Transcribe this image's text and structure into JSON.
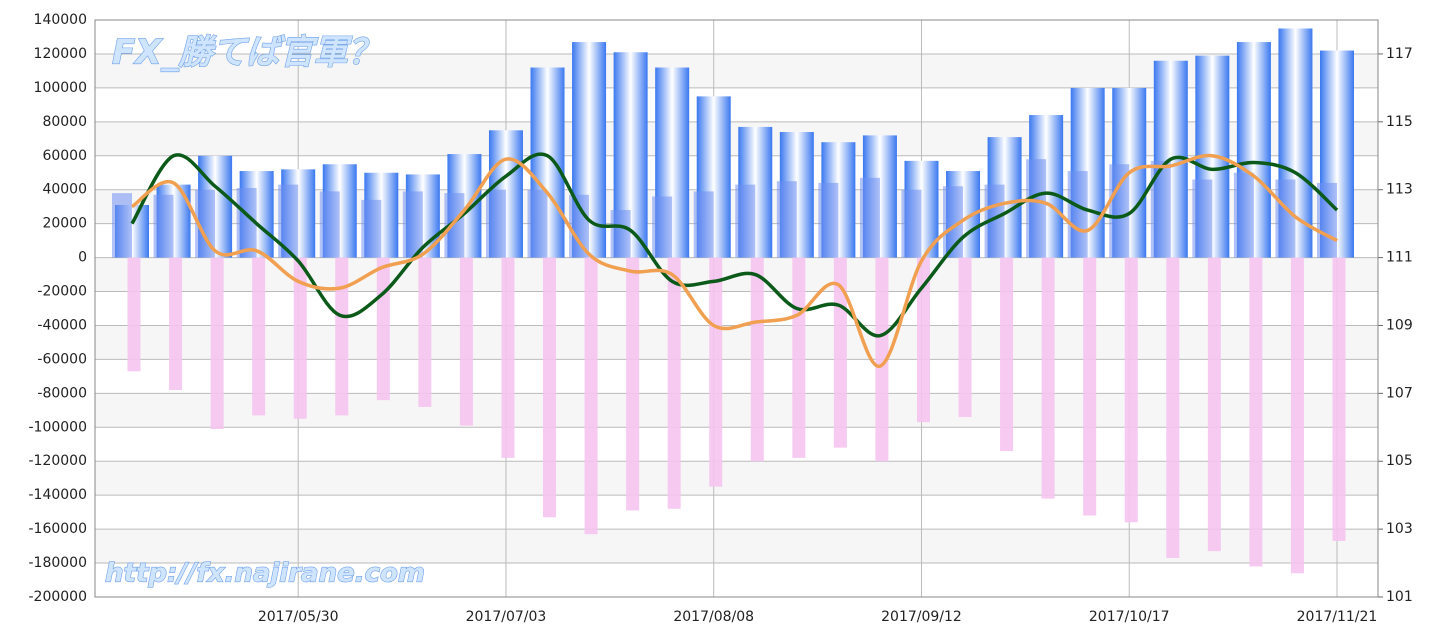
{
  "chart_data": {
    "type": "bar_line",
    "title": "FX_勝てば官軍？",
    "annotation": "http://fx.najirane.com",
    "categories": [
      null,
      null,
      null,
      null,
      "2017/05/30",
      null,
      null,
      null,
      null,
      "2017/07/03",
      null,
      null,
      null,
      null,
      "2017/08/08",
      null,
      null,
      null,
      null,
      "2017/09/12",
      null,
      null,
      null,
      null,
      "2017/10/17",
      null,
      null,
      null,
      null,
      "2017/11/21"
    ],
    "ylim": [
      -200000,
      140000
    ],
    "yticks": [
      -200000,
      -180000,
      -160000,
      -140000,
      -120000,
      -100000,
      -80000,
      -60000,
      -40000,
      -20000,
      0,
      20000,
      40000,
      60000,
      80000,
      100000,
      120000,
      140000
    ],
    "y2lim": [
      101,
      118
    ],
    "y2ticks": [
      101,
      103,
      105,
      107,
      109,
      111,
      113,
      115,
      117
    ],
    "grid": true,
    "series": [
      {
        "kind": "bar",
        "color": "#3a78f0",
        "values": [
          31000,
          43000,
          60000,
          51000,
          52000,
          55000,
          50000,
          49000,
          61000,
          75000,
          112000,
          127000,
          121000,
          112000,
          95000,
          77000,
          74000,
          68000,
          72000,
          57000,
          51000,
          71000,
          84000,
          100000,
          100000,
          116000,
          119000,
          127000,
          135000,
          122000
        ]
      },
      {
        "kind": "bar",
        "color": "#6f8ff0",
        "values": [
          38000,
          37000,
          40000,
          41000,
          43000,
          39000,
          34000,
          39000,
          38000,
          40000,
          40000,
          37000,
          28000,
          36000,
          39000,
          43000,
          45000,
          44000,
          47000,
          40000,
          42000,
          43000,
          58000,
          51000,
          55000,
          57000,
          46000,
          50000,
          46000,
          44000
        ]
      },
      {
        "kind": "bar",
        "color": "#f5c4f0",
        "values": [
          -67000,
          -78000,
          -101000,
          -93000,
          -95000,
          -93000,
          -84000,
          -88000,
          -99000,
          -118000,
          -153000,
          -163000,
          -149000,
          -148000,
          -135000,
          -120000,
          -118000,
          -112000,
          -120000,
          -97000,
          -94000,
          -114000,
          -142000,
          -152000,
          -156000,
          -177000,
          -173000,
          -182000,
          -186000,
          -167000
        ]
      },
      {
        "kind": "line",
        "axis": "y2",
        "color": "#0b5a1a",
        "values": [
          112.0,
          114.0,
          113.1,
          112.0,
          110.9,
          109.3,
          109.9,
          111.3,
          112.3,
          113.4,
          114.0,
          112.1,
          111.8,
          110.3,
          110.3,
          110.5,
          109.5,
          109.6,
          108.7,
          110.1,
          111.6,
          112.3,
          112.9,
          112.4,
          112.3,
          113.9,
          113.6,
          113.8,
          113.5,
          112.4
        ]
      },
      {
        "kind": "line",
        "axis": "y2",
        "color": "#f0a050",
        "values": [
          112.5,
          113.2,
          111.2,
          111.2,
          110.3,
          110.1,
          110.7,
          111.1,
          112.4,
          113.9,
          112.9,
          111.1,
          110.6,
          110.5,
          109.0,
          109.1,
          109.3,
          110.2,
          107.8,
          110.9,
          112.1,
          112.6,
          112.6,
          111.8,
          113.5,
          113.7,
          114.0,
          113.4,
          112.2,
          111.5
        ]
      }
    ]
  }
}
